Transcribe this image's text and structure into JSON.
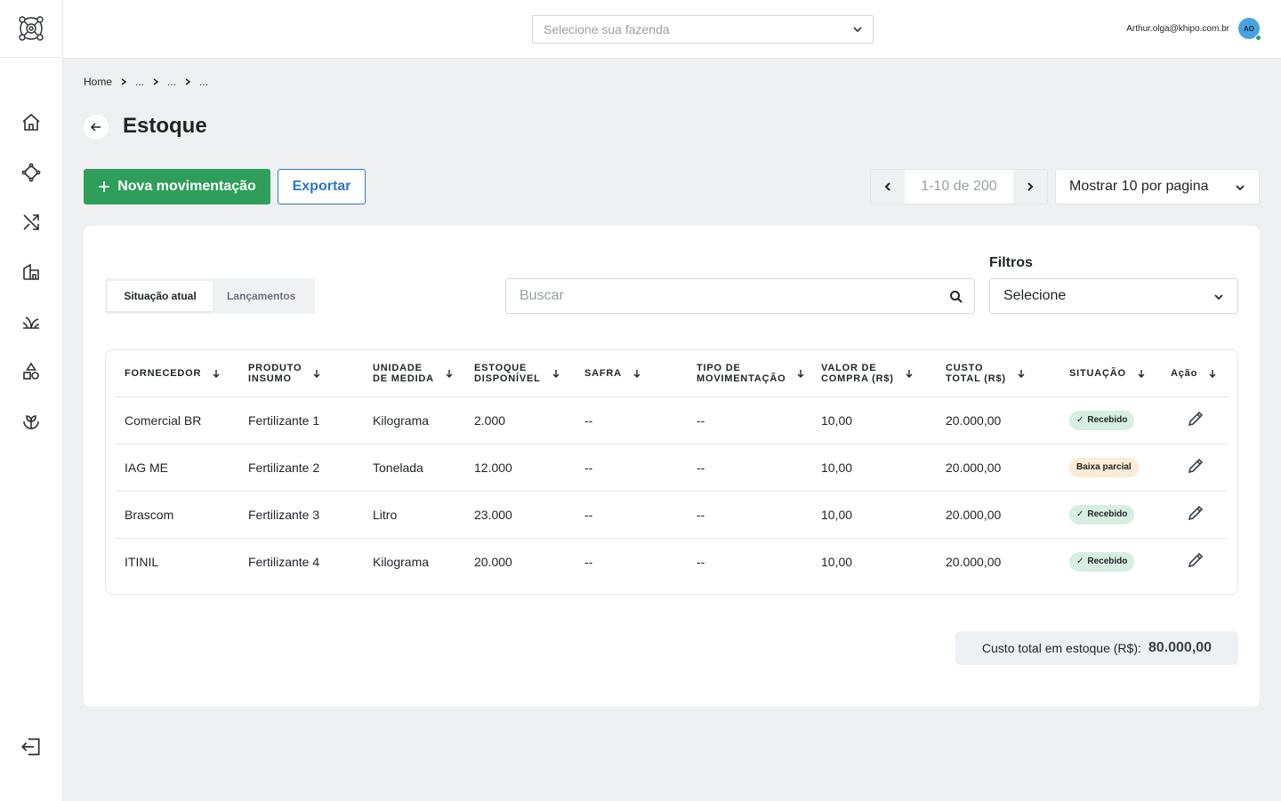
{
  "header": {
    "farm_placeholder": "Selecione sua fazenda",
    "user_email": "Arthur.olga@khipo.com.br",
    "avatar_initials": "AO"
  },
  "sidebar": {
    "items": [
      {
        "icon": "home-icon"
      },
      {
        "icon": "diamond-nodes-icon"
      },
      {
        "icon": "shuffle-icon"
      },
      {
        "icon": "warehouse-icon"
      },
      {
        "icon": "plant-icon"
      },
      {
        "icon": "shapes-icon"
      },
      {
        "icon": "sprout-hand-icon"
      }
    ],
    "logout_icon": "logout-icon"
  },
  "breadcrumb": [
    "Home",
    "...",
    "...",
    "..."
  ],
  "page": {
    "title": "Estoque"
  },
  "toolbar": {
    "new_label": "Nova movimentação",
    "export_label": "Exportar",
    "pager_range": "1-10 de 200",
    "per_page": "Mostrar 10 por pagina"
  },
  "tabs": [
    {
      "label": "Situação atual",
      "active": true
    },
    {
      "label": "Lançamentos",
      "active": false
    }
  ],
  "search": {
    "placeholder": "Buscar"
  },
  "filters": {
    "label": "Filtros",
    "value": "Selecione"
  },
  "table": {
    "columns": [
      {
        "line1": "FORNECEDOR",
        "line2": ""
      },
      {
        "line1": "PRODUTO",
        "line2": "INSUMO"
      },
      {
        "line1": "UNIDADE",
        "line2": "DE MEDIDA"
      },
      {
        "line1": "ESTOQUE",
        "line2": "DISPONÍVEL"
      },
      {
        "line1": "SAFRA",
        "line2": ""
      },
      {
        "line1": "TIPO DE",
        "line2": "MOVIMENTAÇÃO"
      },
      {
        "line1": "VALOR DE",
        "line2": "COMPRA  (R$)"
      },
      {
        "line1": "CUSTO",
        "line2": "TOTAL (R$)"
      },
      {
        "line1": "SITUAÇÃO",
        "line2": ""
      },
      {
        "line1": "Ação",
        "line2": ""
      }
    ],
    "rows": [
      {
        "fornecedor": "Comercial BR",
        "produto": "Fertilizante 1",
        "unidade": "Kilograma",
        "estoque": "2.000",
        "safra": "--",
        "tipo": "--",
        "valor": "10,00",
        "custo": "20.000,00",
        "situacao": "Recebido",
        "status": "ok"
      },
      {
        "fornecedor": "IAG ME",
        "produto": "Fertilizante 2",
        "unidade": "Tonelada",
        "estoque": "12.000",
        "safra": "--",
        "tipo": "--",
        "valor": "10,00",
        "custo": "20.000,00",
        "situacao": "Baixa parcial",
        "status": "partial"
      },
      {
        "fornecedor": "Brascom",
        "produto": "Fertilizante 3",
        "unidade": "Litro",
        "estoque": "23.000",
        "safra": "--",
        "tipo": "--",
        "valor": "10,00",
        "custo": "20.000,00",
        "situacao": "Recebido",
        "status": "ok"
      },
      {
        "fornecedor": "ITINIL",
        "produto": "Fertilizante 4",
        "unidade": "Kilograma",
        "estoque": "20.000",
        "safra": "--",
        "tipo": "--",
        "valor": "10,00",
        "custo": "20.000,00",
        "situacao": "Recebido",
        "status": "ok"
      }
    ]
  },
  "total": {
    "label": "Custo total em estoque (R$):",
    "value": "80.000,00"
  },
  "colors": {
    "primary": "#2f9e5a",
    "accent": "#2c78c4",
    "badge_ok": "#d6efe0",
    "badge_partial": "#faecd5",
    "background": "#eff0f1"
  }
}
